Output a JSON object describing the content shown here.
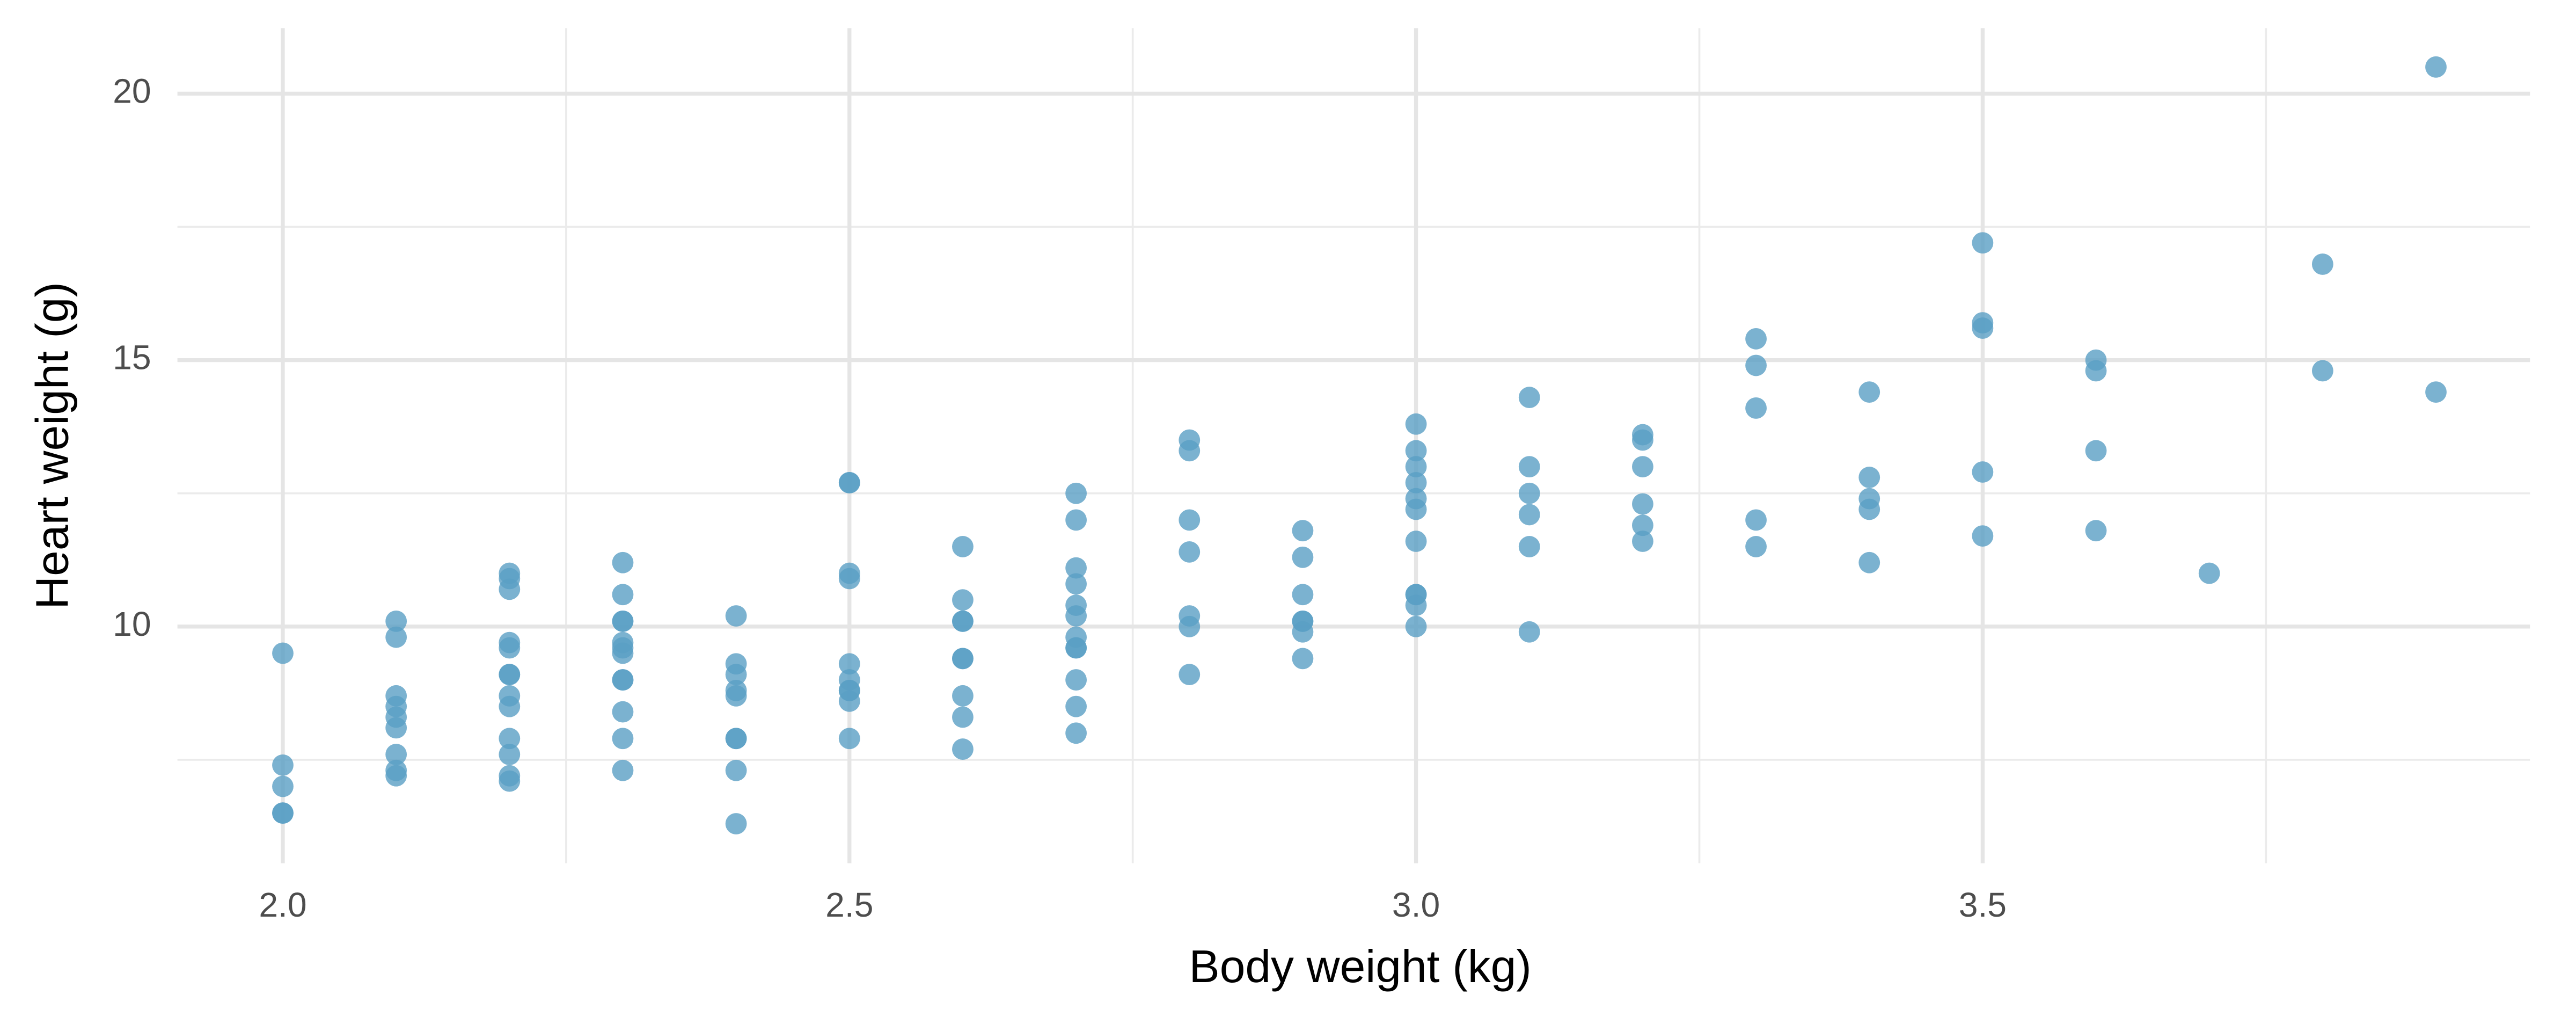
{
  "chart_data": {
    "type": "scatter",
    "x_label": "Body weight (kg)",
    "y_label": "Heart weight (g)",
    "color": "#5a9fc4",
    "xlim": [
      1.907,
      3.983
    ],
    "ylim": [
      5.56,
      21.23
    ],
    "xticks": [
      {
        "value": 2,
        "label": "2.0"
      },
      {
        "value": 2.5,
        "label": "2.5"
      },
      {
        "value": 3,
        "label": "3.0"
      },
      {
        "value": 3.5,
        "label": "3.5"
      }
    ],
    "yticks": [
      10,
      15,
      20
    ],
    "x_minor_grid": [
      2.25,
      2.75,
      3.25,
      3.75
    ],
    "y_minor_grid": [
      7.5,
      12.5,
      17.5
    ],
    "grid": true,
    "x": [
      2.0,
      2.0,
      2.0,
      2.0,
      2.0,
      2.1,
      2.1,
      2.1,
      2.1,
      2.1,
      2.1,
      2.1,
      2.1,
      2.1,
      2.2,
      2.2,
      2.2,
      2.2,
      2.2,
      2.2,
      2.2,
      2.2,
      2.2,
      2.2,
      2.2,
      2.2,
      2.2,
      2.3,
      2.3,
      2.3,
      2.3,
      2.3,
      2.3,
      2.3,
      2.3,
      2.3,
      2.3,
      2.3,
      2.3,
      2.4,
      2.4,
      2.4,
      2.4,
      2.4,
      2.4,
      2.4,
      2.4,
      2.4,
      2.5,
      2.5,
      2.5,
      2.5,
      2.5,
      2.5,
      2.5,
      2.5,
      2.5,
      2.5,
      2.6,
      2.6,
      2.6,
      2.6,
      2.6,
      2.6,
      2.6,
      2.6,
      2.6,
      2.7,
      2.7,
      2.7,
      2.7,
      2.7,
      2.7,
      2.7,
      2.7,
      2.7,
      2.7,
      2.7,
      2.7,
      2.8,
      2.8,
      2.8,
      2.8,
      2.8,
      2.8,
      2.8,
      2.9,
      2.9,
      2.9,
      2.9,
      2.9,
      2.9,
      2.9,
      3.0,
      3.0,
      3.0,
      3.0,
      3.0,
      3.0,
      3.0,
      3.0,
      3.0,
      3.0,
      3.0,
      3.1,
      3.1,
      3.1,
      3.1,
      3.1,
      3.1,
      3.2,
      3.2,
      3.2,
      3.2,
      3.2,
      3.2,
      3.3,
      3.3,
      3.3,
      3.3,
      3.3,
      3.4,
      3.4,
      3.4,
      3.4,
      3.4,
      3.5,
      3.5,
      3.5,
      3.5,
      3.5,
      3.6,
      3.6,
      3.6,
      3.6,
      3.7,
      3.8,
      3.8,
      3.9,
      3.9
    ],
    "y": [
      9.5,
      7.4,
      7.0,
      6.5,
      6.5,
      10.1,
      9.8,
      8.7,
      8.5,
      8.3,
      8.1,
      7.6,
      7.3,
      7.2,
      11.0,
      10.9,
      10.7,
      9.7,
      9.6,
      9.1,
      9.1,
      8.7,
      8.5,
      7.9,
      7.6,
      7.2,
      7.1,
      11.2,
      10.6,
      10.1,
      10.1,
      9.7,
      9.6,
      9.5,
      9.0,
      9.0,
      8.4,
      7.9,
      7.3,
      10.2,
      9.3,
      9.1,
      8.8,
      8.7,
      7.9,
      7.9,
      7.3,
      6.3,
      12.7,
      12.7,
      11.0,
      10.9,
      9.3,
      9.0,
      8.8,
      8.8,
      8.6,
      7.9,
      11.5,
      10.5,
      10.1,
      10.1,
      9.4,
      9.4,
      8.7,
      8.3,
      7.7,
      12.5,
      12.0,
      11.1,
      10.8,
      10.4,
      10.2,
      9.8,
      9.6,
      9.6,
      9.0,
      8.5,
      8.0,
      13.5,
      13.3,
      12.0,
      11.4,
      10.2,
      10.0,
      9.1,
      11.8,
      11.3,
      10.6,
      10.1,
      10.1,
      9.9,
      9.4,
      13.8,
      13.3,
      13.0,
      12.7,
      12.4,
      12.2,
      11.6,
      10.6,
      10.6,
      10.4,
      10.0,
      14.3,
      13.0,
      12.5,
      12.1,
      11.5,
      9.9,
      13.6,
      13.5,
      13.0,
      12.3,
      11.9,
      11.6,
      15.4,
      14.9,
      14.1,
      12.0,
      11.5,
      14.4,
      12.8,
      12.4,
      12.2,
      11.2,
      17.2,
      15.7,
      15.6,
      12.9,
      11.7,
      15.0,
      14.8,
      13.3,
      11.8,
      11.0,
      16.8,
      14.8,
      20.5,
      14.4
    ]
  }
}
